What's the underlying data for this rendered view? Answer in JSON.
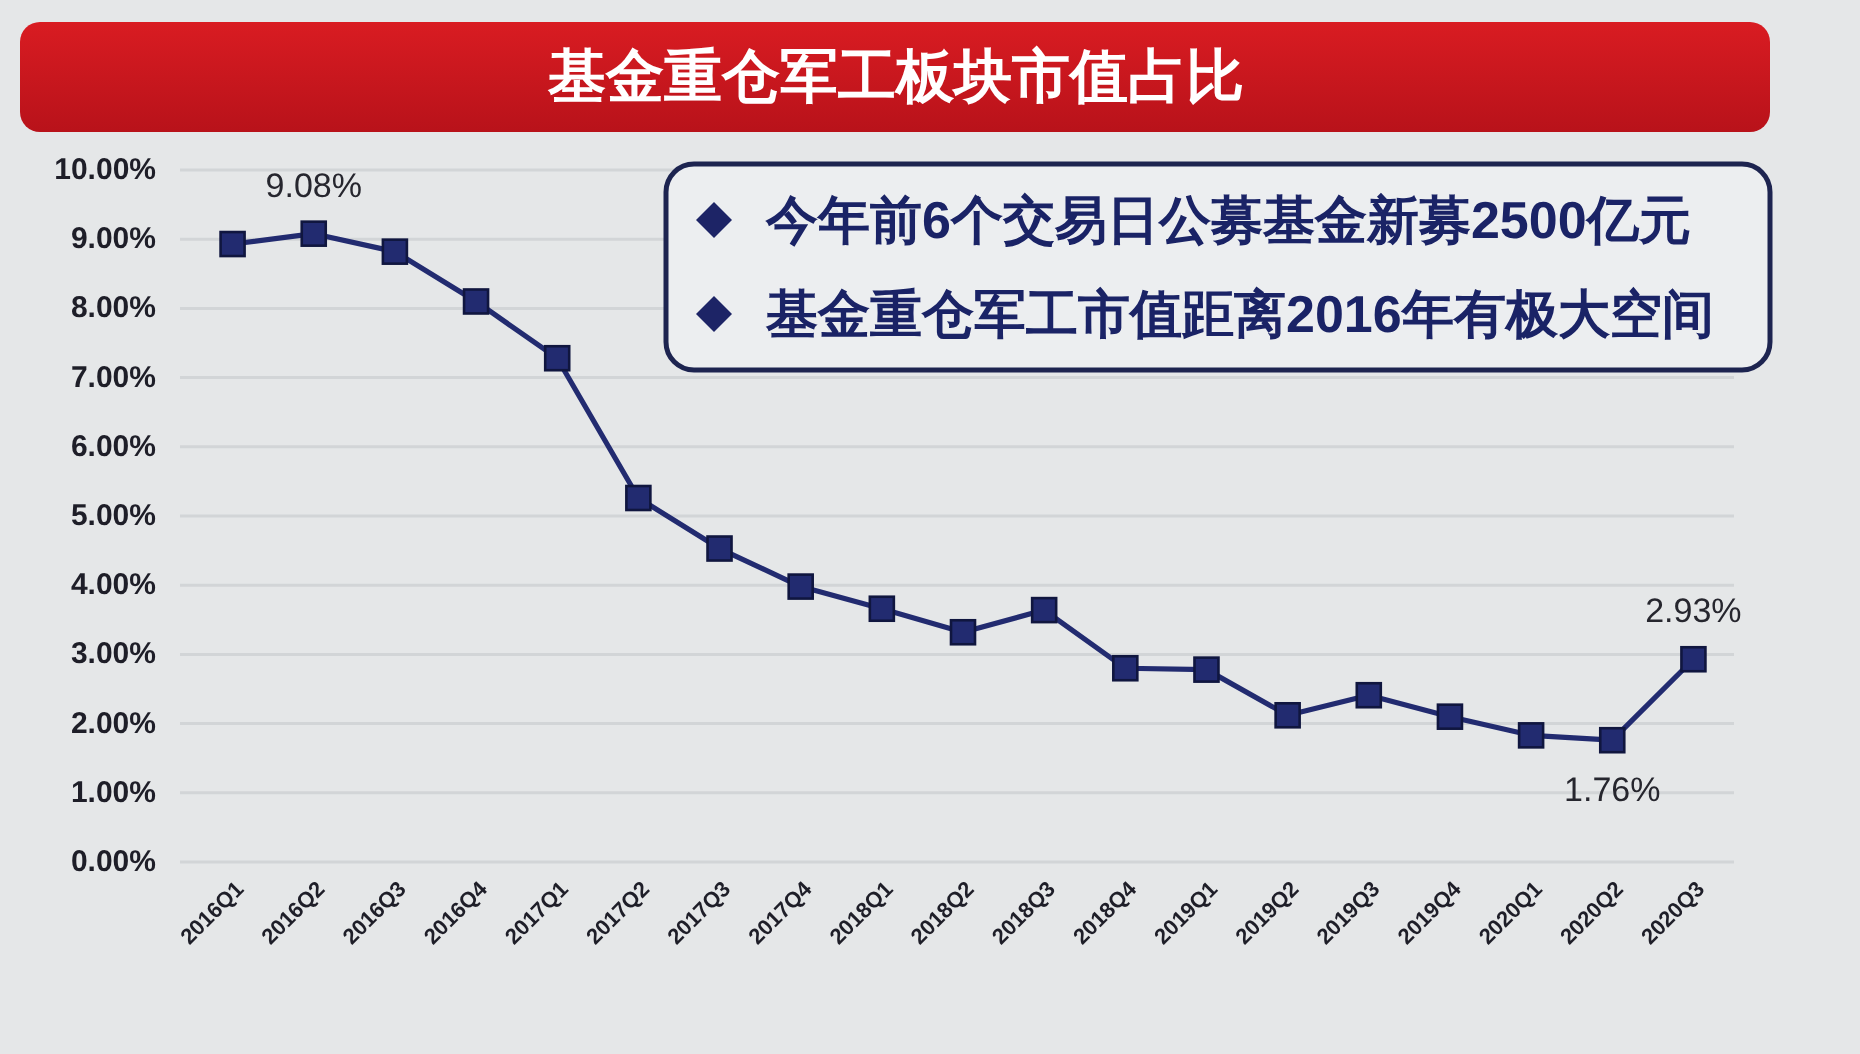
{
  "chart_data": {
    "type": "line",
    "title": "基金重仓军工板块市值占比",
    "annotations": [
      "今年前6个交易日公募基金新募2500亿元",
      "基金重仓军工市值距离2016年有极大空间"
    ],
    "categories": [
      "2016Q1",
      "2016Q2",
      "2016Q3",
      "2016Q4",
      "2017Q1",
      "2017Q2",
      "2017Q3",
      "2017Q4",
      "2018Q1",
      "2018Q2",
      "2018Q3",
      "2018Q4",
      "2019Q1",
      "2019Q2",
      "2019Q3",
      "2019Q4",
      "2020Q1",
      "2020Q2",
      "2020Q3"
    ],
    "series": [
      {
        "color": "#222b70",
        "values": [
          8.93,
          9.08,
          8.82,
          8.1,
          7.28,
          5.26,
          4.53,
          3.98,
          3.66,
          3.32,
          3.64,
          2.8,
          2.78,
          2.12,
          2.41,
          2.1,
          1.83,
          1.76,
          2.93
        ],
        "value_labels": [
          null,
          "9.08%",
          null,
          null,
          null,
          null,
          null,
          null,
          null,
          null,
          null,
          null,
          null,
          null,
          null,
          null,
          null,
          "1.76%",
          "2.93%"
        ]
      }
    ],
    "ylim": [
      0,
      10
    ],
    "yticks": [
      {
        "value": 0,
        "label": "0.00%"
      },
      {
        "value": 1,
        "label": "1.00%"
      },
      {
        "value": 2,
        "label": "2.00%"
      },
      {
        "value": 3,
        "label": "3.00%"
      },
      {
        "value": 4,
        "label": "4.00%"
      },
      {
        "value": 5,
        "label": "5.00%"
      },
      {
        "value": 6,
        "label": "6.00%"
      },
      {
        "value": 7,
        "label": "7.00%"
      },
      {
        "value": 8,
        "label": "8.00%"
      },
      {
        "value": 9,
        "label": "9.00%"
      },
      {
        "value": 10,
        "label": "10.00%"
      }
    ],
    "grid": "y",
    "marker": "square",
    "line_style": "solid"
  }
}
